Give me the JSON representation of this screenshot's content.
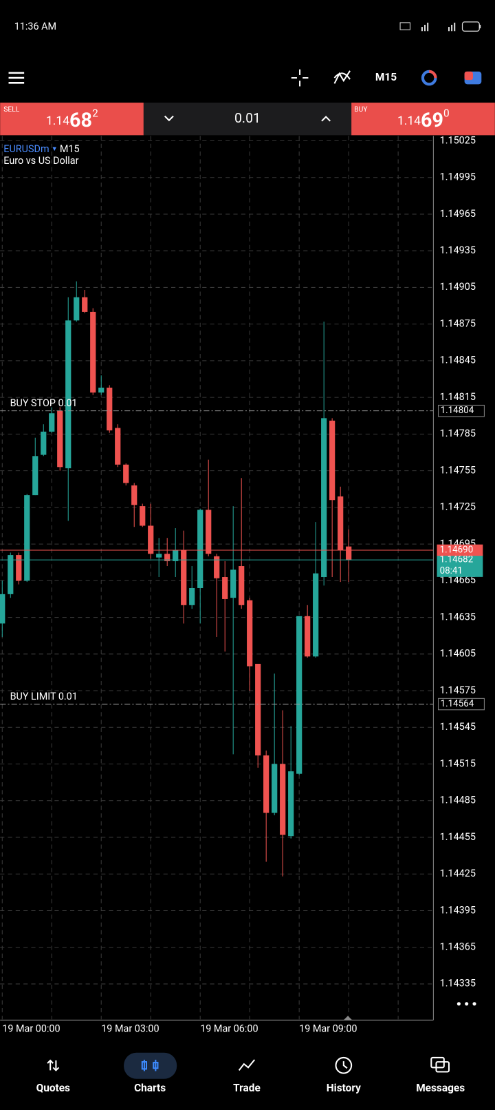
{
  "status_bar": {
    "time": "11:36 AM"
  },
  "toolbar": {
    "timeframe": "M15"
  },
  "trade_panel": {
    "sell": {
      "label": "SELL",
      "price_prefix": "1.14",
      "price_big": "68",
      "price_sup": "2"
    },
    "volume": "0.01",
    "buy": {
      "label": "BUY",
      "price_prefix": "1.14",
      "price_big": "69",
      "price_sup": "0"
    }
  },
  "chart_data": {
    "type": "candlestick",
    "symbol": "EURUSDm",
    "timeframe": "M15",
    "description": "Euro vs US Dollar",
    "categories": [
      "19 Mar 00:00",
      null,
      null,
      null,
      null,
      null,
      null,
      null,
      null,
      null,
      null,
      null,
      "19 Mar 03:00",
      null,
      null,
      null,
      null,
      null,
      null,
      null,
      null,
      null,
      null,
      null,
      "19 Mar 06:00",
      null,
      null,
      null,
      null,
      null,
      null,
      null,
      null,
      null,
      null,
      null,
      "19 Mar 09:00",
      null,
      null,
      null,
      null,
      null,
      null
    ],
    "open": [
      1.1463,
      1.14654,
      1.14686,
      1.14665,
      1.14735,
      1.14768,
      1.14787,
      1.14804,
      1.14757,
      1.14878,
      1.14897,
      1.14885,
      1.14819,
      1.14823,
      1.1479,
      1.1476,
      1.14743,
      1.14726,
      1.1471,
      1.14684,
      1.14687,
      1.14681,
      1.1469,
      1.14645,
      1.14659,
      1.14723,
      1.14685,
      1.14668,
      1.14651,
      1.14677,
      1.14649,
      1.14597,
      1.14522,
      1.14475,
      1.14515,
      1.14456,
      1.14507,
      1.14636,
      1.14603,
      1.14668,
      1.14796,
      1.14734,
      1.14693
    ],
    "high": [
      1.14665,
      1.14688,
      1.14688,
      1.14736,
      1.14782,
      1.14793,
      1.14807,
      1.14807,
      1.14897,
      1.1491,
      1.14903,
      1.14888,
      1.14833,
      1.14825,
      1.14793,
      1.14761,
      1.14745,
      1.14728,
      1.14728,
      1.147,
      1.147,
      1.14708,
      1.14706,
      1.14677,
      1.14724,
      1.14764,
      1.14687,
      1.14681,
      1.14726,
      1.14749,
      1.14651,
      1.14597,
      1.14526,
      1.14589,
      1.14559,
      1.14546,
      1.14636,
      1.14645,
      1.14713,
      1.14877,
      1.14798,
      1.14742,
      1.14707
    ],
    "low": [
      1.14619,
      1.14651,
      1.14662,
      1.14664,
      1.14735,
      1.14767,
      1.14786,
      1.14755,
      1.14714,
      1.14877,
      1.14884,
      1.14817,
      1.14817,
      1.14786,
      1.14758,
      1.14743,
      1.14709,
      1.14709,
      1.14683,
      1.14668,
      1.14677,
      1.14668,
      1.1463,
      1.14642,
      1.1463,
      1.14685,
      1.14619,
      1.14607,
      1.14523,
      1.14642,
      1.14575,
      1.14512,
      1.14435,
      1.14473,
      1.14423,
      1.14454,
      1.14506,
      1.14602,
      1.14602,
      1.14661,
      1.14668,
      1.14664,
      1.14664
    ],
    "close": [
      1.14654,
      1.14686,
      1.14665,
      1.14735,
      1.14767,
      1.14787,
      1.14802,
      1.14758,
      1.14878,
      1.14897,
      1.14885,
      1.14819,
      1.14823,
      1.14788,
      1.1476,
      1.14745,
      1.14727,
      1.1471,
      1.14687,
      1.14687,
      1.14681,
      1.1469,
      1.14645,
      1.14659,
      1.14723,
      1.14687,
      1.14667,
      1.1465,
      1.14674,
      1.14645,
      1.14595,
      1.14522,
      1.14475,
      1.14515,
      1.14457,
      1.14509,
      1.14636,
      1.14603,
      1.14671,
      1.14798,
      1.14731,
      1.1469,
      1.14682
    ],
    "up_color": "#26a69a",
    "down_color": "#ef5350",
    "ylim": [
      1.14306,
      1.15029
    ],
    "yticks": [
      1.15025,
      1.14995,
      1.14965,
      1.14935,
      1.14905,
      1.14875,
      1.14845,
      1.14815,
      1.14785,
      1.14755,
      1.14725,
      1.14695,
      1.14665,
      1.14635,
      1.14605,
      1.14575,
      1.14545,
      1.14515,
      1.14485,
      1.14455,
      1.14425,
      1.14395,
      1.14365,
      1.14335
    ],
    "grid": true,
    "orders": [
      {
        "label": "BUY STOP 0.01",
        "price": 1.14804
      },
      {
        "label": "BUY LIMIT 0.01",
        "price": 1.14564
      }
    ],
    "ask": {
      "value": 1.1469,
      "label": "1.14690"
    },
    "bid": 1.14682,
    "countdown": "08:41"
  },
  "nav": {
    "tabs": [
      "Quotes",
      "Charts",
      "Trade",
      "History",
      "Messages"
    ],
    "active": 1
  }
}
